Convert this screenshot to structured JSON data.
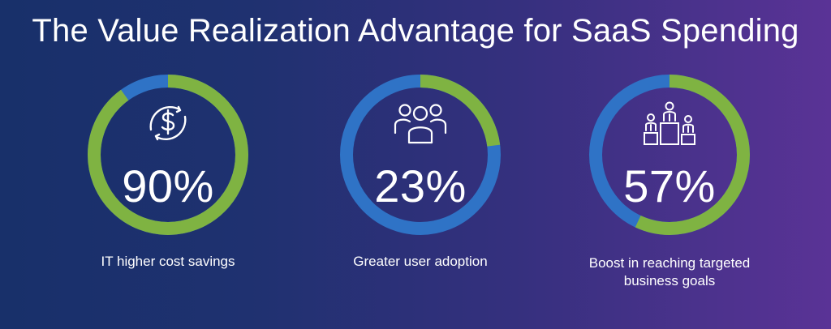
{
  "header": {
    "title": "The Value Realization Advantage for SaaS Spending"
  },
  "colors": {
    "green": "#7fb342",
    "blue": "#2f73c6",
    "text": "#ffffff"
  },
  "stats": [
    {
      "value": "90%",
      "caption": "IT higher cost savings",
      "icon": "dollar-refresh-icon",
      "green_fraction": 0.9
    },
    {
      "value": "23%",
      "caption": "Greater user adoption",
      "icon": "users-group-icon",
      "green_fraction": 0.23
    },
    {
      "value": "57%",
      "caption": "Boost in reaching targeted business goals",
      "icon": "podium-people-icon",
      "green_fraction": 0.57
    }
  ]
}
